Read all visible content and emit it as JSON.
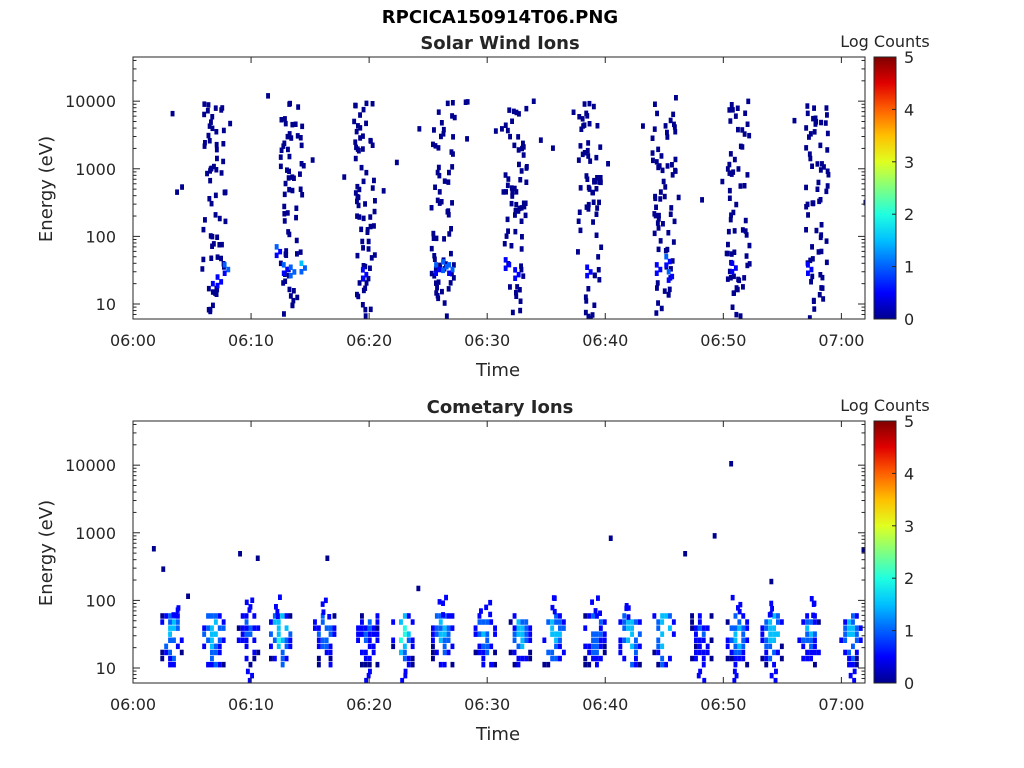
{
  "figure": {
    "filename": "RPCICA150914T06.PNG",
    "colormap": [
      "#00008f",
      "#0000ff",
      "#0060ff",
      "#00c0ff",
      "#20ffe0",
      "#80ff80",
      "#e0ff20",
      "#ffc000",
      "#ff6000",
      "#e00000",
      "#800000"
    ]
  },
  "chart_data": [
    {
      "type": "heatmap",
      "title": "Solar Wind Ions",
      "xlabel": "Time",
      "ylabel": "Energy (eV)",
      "colorbar_label": "Log Counts",
      "xlim": [
        "06:00",
        "07:02"
      ],
      "x_ticks": [
        "06:00",
        "06:10",
        "06:20",
        "06:30",
        "06:40",
        "06:50",
        "07:00"
      ],
      "ylim": [
        6,
        45000
      ],
      "y_scale": "log",
      "y_ticks": [
        10,
        100,
        1000,
        10000
      ],
      "clim": [
        0,
        5
      ],
      "colorbar_ticks": [
        0,
        1,
        2,
        3,
        4,
        5
      ],
      "bursts_minutes": [
        6.3,
        12.9,
        19.1,
        25.7,
        31.8,
        38.1,
        44.4,
        50.7,
        57.4
      ],
      "strong_cells": [
        {
          "t": 6.6,
          "e": 20,
          "log": 0.3
        },
        {
          "t": 7.0,
          "e": 25,
          "log": 0.6
        },
        {
          "t": 7.6,
          "e": 38,
          "log": 1.0
        },
        {
          "t": 12.6,
          "e": 38,
          "log": 0.8
        },
        {
          "t": 13.2,
          "e": 35,
          "log": 1.1
        },
        {
          "t": 14.1,
          "e": 40,
          "log": 1.3
        },
        {
          "t": 12.0,
          "e": 70,
          "log": 0.8
        },
        {
          "t": 19.3,
          "e": 32,
          "log": 0.6
        },
        {
          "t": 25.5,
          "e": 38,
          "log": 0.8
        },
        {
          "t": 26.1,
          "e": 42,
          "log": 1.1
        },
        {
          "t": 26.6,
          "e": 38,
          "log": 1.0
        },
        {
          "t": 31.4,
          "e": 45,
          "log": 0.5
        },
        {
          "t": 32.2,
          "e": 32,
          "log": 0.7
        },
        {
          "t": 38.3,
          "e": 35,
          "log": 0.6
        },
        {
          "t": 44.2,
          "e": 38,
          "log": 0.7
        },
        {
          "t": 45.0,
          "e": 50,
          "log": 0.9
        },
        {
          "t": 45.2,
          "e": 30,
          "log": 0.8
        },
        {
          "t": 50.6,
          "e": 40,
          "log": 0.5
        },
        {
          "t": 57.0,
          "e": 38,
          "log": 0.5
        }
      ]
    },
    {
      "type": "heatmap",
      "title": "Cometary Ions",
      "xlabel": "Time",
      "ylabel": "Energy (eV)",
      "colorbar_label": "Log Counts",
      "xlim": [
        "06:00",
        "07:02"
      ],
      "x_ticks": [
        "06:00",
        "06:10",
        "06:20",
        "06:30",
        "06:40",
        "06:50",
        "07:00"
      ],
      "ylim": [
        6,
        45000
      ],
      "y_scale": "log",
      "y_ticks": [
        10,
        100,
        1000,
        10000
      ],
      "clim": [
        0,
        5
      ],
      "colorbar_ticks": [
        0,
        1,
        2,
        3,
        4,
        5
      ],
      "bursts_minutes": [
        3.3,
        6.7,
        9.7,
        12.3,
        16.2,
        19.7,
        22.8,
        26.1,
        29.7,
        32.6,
        35.6,
        39.1,
        42.0,
        45.0,
        48.0,
        51.0,
        54.1,
        57.2,
        60.8
      ],
      "isolated_points": [
        {
          "t": 1.6,
          "e": 580
        },
        {
          "t": 2.4,
          "e": 290
        },
        {
          "t": 4.5,
          "e": 115
        },
        {
          "t": 8.9,
          "e": 490
        },
        {
          "t": 10.4,
          "e": 420
        },
        {
          "t": 16.3,
          "e": 420
        },
        {
          "t": 24.0,
          "e": 150
        },
        {
          "t": 40.3,
          "e": 830
        },
        {
          "t": 46.6,
          "e": 490
        },
        {
          "t": 49.1,
          "e": 900
        },
        {
          "t": 50.5,
          "e": 10500
        },
        {
          "t": 53.9,
          "e": 190
        },
        {
          "t": 61.7,
          "e": 560
        }
      ]
    }
  ]
}
